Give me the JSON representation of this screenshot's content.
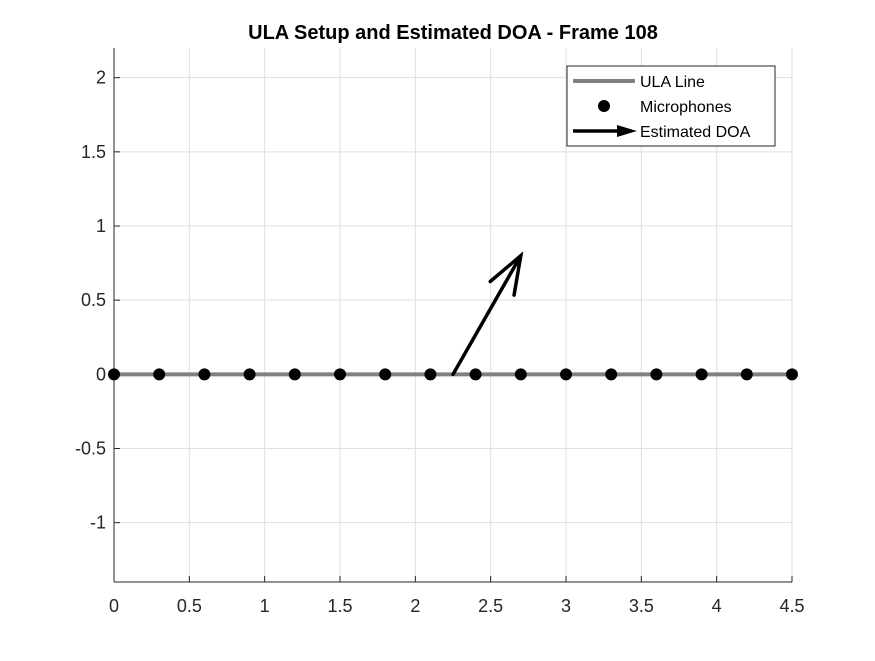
{
  "chart_data": {
    "type": "scatter",
    "title": "ULA Setup and Estimated DOA - Frame 108",
    "xlabel": "",
    "ylabel": "",
    "xlim": [
      0,
      4.5
    ],
    "ylim": [
      -1.4,
      2.2
    ],
    "xticks": [
      0,
      0.5,
      1,
      1.5,
      2,
      2.5,
      3,
      3.5,
      4,
      4.5
    ],
    "xtick_labels": [
      "0",
      "0.5",
      "1",
      "1.5",
      "2",
      "2.5",
      "3",
      "3.5",
      "4",
      "4.5"
    ],
    "yticks": [
      -1,
      -0.5,
      0,
      0.5,
      1,
      1.5,
      2
    ],
    "ytick_labels": [
      "-1",
      "-0.5",
      "0",
      "0.5",
      "1",
      "1.5",
      "2"
    ],
    "grid": true,
    "legend_position": "top-right",
    "series": [
      {
        "name": "ULA Line",
        "kind": "line",
        "color": "#808080",
        "x": [
          0,
          4.5
        ],
        "y": [
          0,
          0
        ]
      },
      {
        "name": "Microphones",
        "kind": "marker",
        "color": "#000000",
        "x": [
          0,
          0.3,
          0.6,
          0.9,
          1.2,
          1.5,
          1.8,
          2.1,
          2.4,
          2.7,
          3.0,
          3.3,
          3.6,
          3.9,
          4.2,
          4.5
        ],
        "y": [
          0,
          0,
          0,
          0,
          0,
          0,
          0,
          0,
          0,
          0,
          0,
          0,
          0,
          0,
          0,
          0
        ]
      },
      {
        "name": "Estimated DOA",
        "kind": "arrow",
        "color": "#000000",
        "x": [
          2.25,
          2.7
        ],
        "y": [
          0,
          0.8
        ]
      }
    ]
  }
}
